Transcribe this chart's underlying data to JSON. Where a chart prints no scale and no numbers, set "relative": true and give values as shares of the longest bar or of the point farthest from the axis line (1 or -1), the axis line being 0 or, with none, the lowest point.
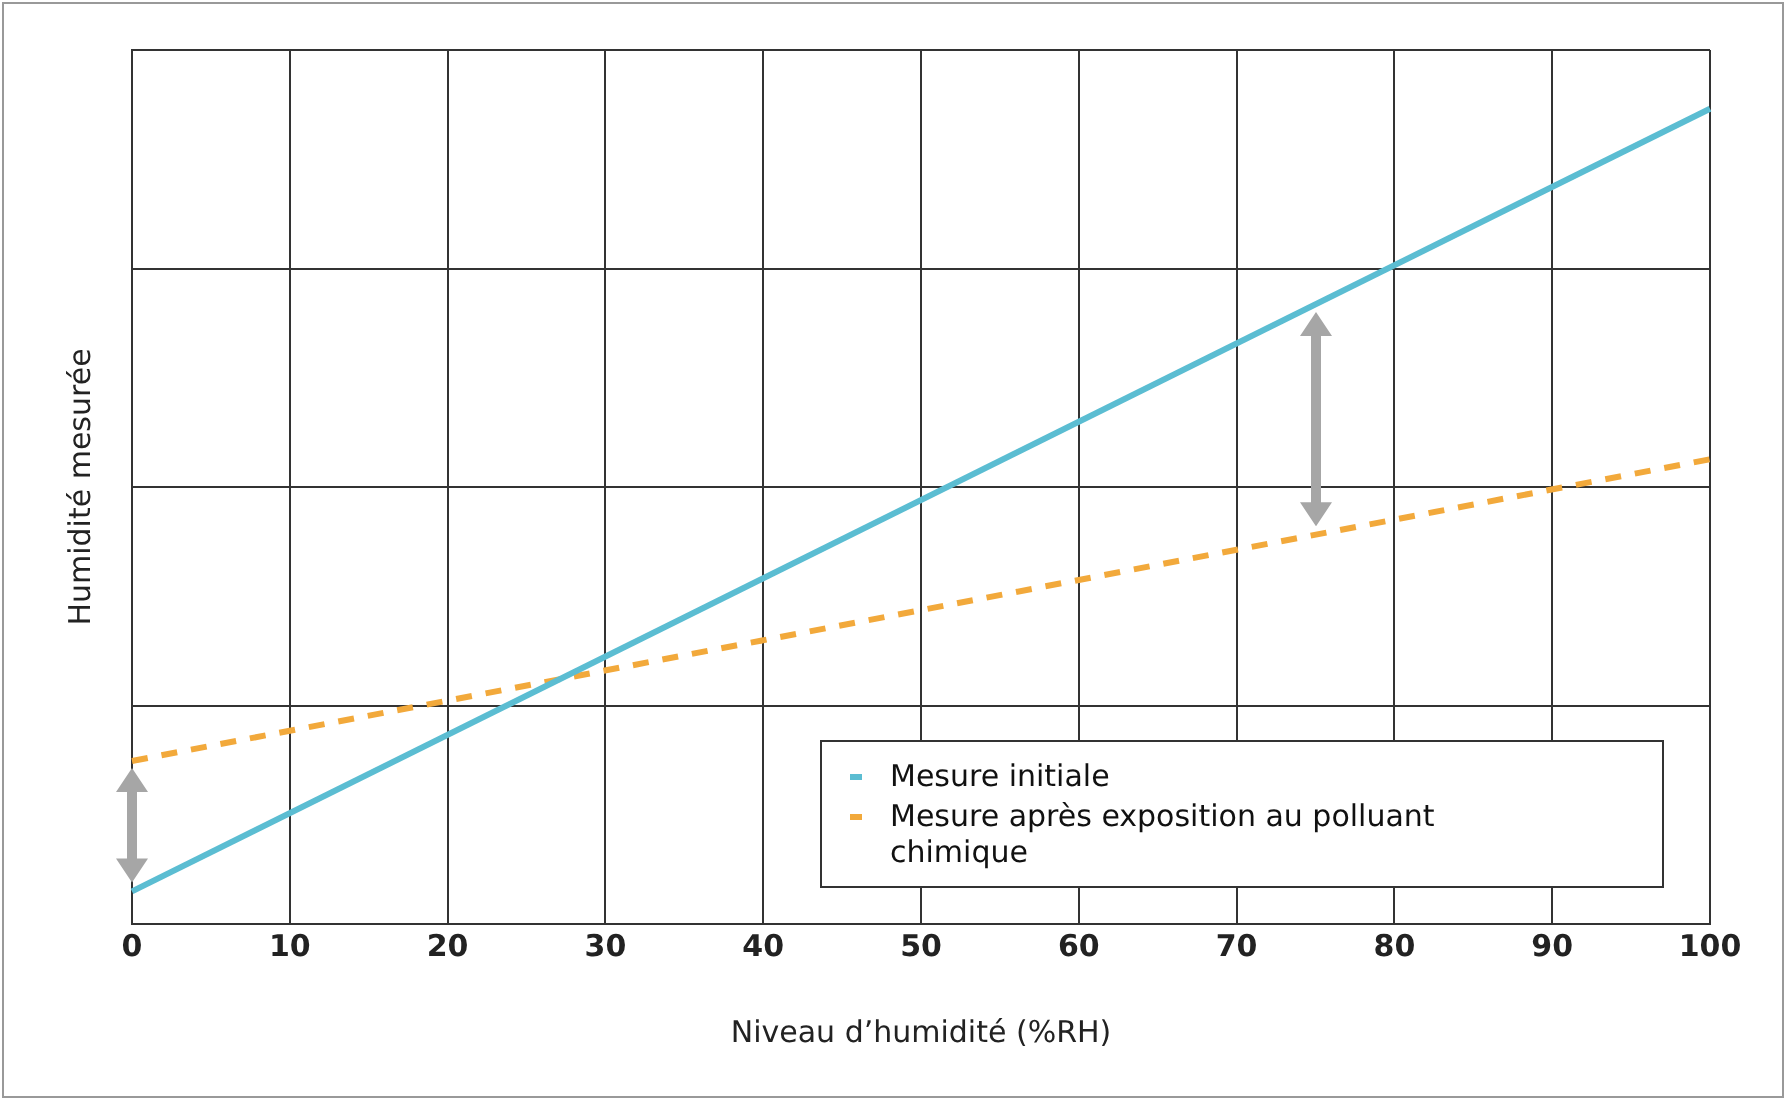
{
  "chart_data": {
    "type": "line",
    "relative": true,
    "xlabel": "Niveau d’humidité (%RH)",
    "ylabel": "Humidité mesurée",
    "xlim": [
      0,
      100
    ],
    "xticks": [
      0,
      10,
      20,
      30,
      40,
      50,
      60,
      70,
      80,
      90,
      100
    ],
    "grid": true,
    "legend": "bottom right",
    "tick_labels": "x",
    "x": [
      0,
      100
    ],
    "series": [
      {
        "name": "Mesure initiale",
        "color": "#5bbdd2",
        "values": [
          0.04,
          1
        ],
        "line_style": "solid"
      },
      {
        "name": "Mesure après exposition au polluant chimique",
        "color": "#f2a93b",
        "values": [
          0.2,
          0.57
        ],
        "line_style": "dashed"
      }
    ]
  }
}
